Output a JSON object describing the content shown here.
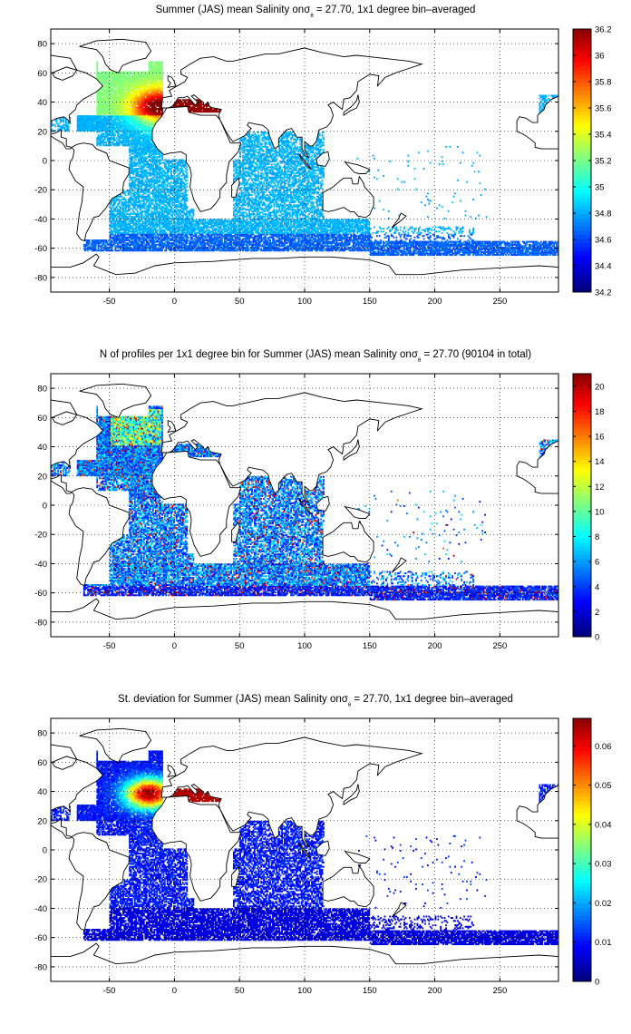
{
  "panels": [
    {
      "title_pre": "Summer (JAS) mean Salinity on",
      "title_post": " = 27.70, 1x1 degree bin–averaged",
      "colormap": "jet",
      "colorbar": {
        "min": 34.2,
        "max": 36.2,
        "ticks": [
          "34.2",
          "34.4",
          "34.6",
          "34.8",
          "35",
          "35.2",
          "35.4",
          "35.6",
          "35.8",
          "36",
          "36.2"
        ]
      }
    },
    {
      "title_pre": "N of profiles per 1x1 degree bin for Summer (JAS) mean Salinity on",
      "title_post": " = 27.70 (90104 in total)",
      "colormap": "jet",
      "colorbar": {
        "min": 0,
        "max": 21,
        "ticks": [
          "0",
          "2",
          "4",
          "6",
          "8",
          "10",
          "12",
          "14",
          "16",
          "18",
          "20"
        ]
      }
    },
    {
      "title_pre": "St. deviation for Summer (JAS) mean Salinity on",
      "title_post": " = 27.70, 1x1 degree bin–averaged",
      "colormap": "jet",
      "colorbar": {
        "min": 0,
        "max": 0.067,
        "ticks": [
          "0",
          "0.01",
          "0.02",
          "0.03",
          "0.04",
          "0.05",
          "0.06"
        ]
      }
    }
  ],
  "sigma_symbol": "σ",
  "sigma_subscript": "θ",
  "map": {
    "xlim": [
      -95,
      295
    ],
    "ylim": [
      -90,
      90
    ],
    "x_ticks": [
      "-50",
      "0",
      "50",
      "100",
      "150",
      "200",
      "250"
    ],
    "y_ticks": [
      "80",
      "60",
      "40",
      "20",
      "0",
      "-20",
      "-40",
      "-60",
      "-80"
    ],
    "grid": "dotted"
  }
}
